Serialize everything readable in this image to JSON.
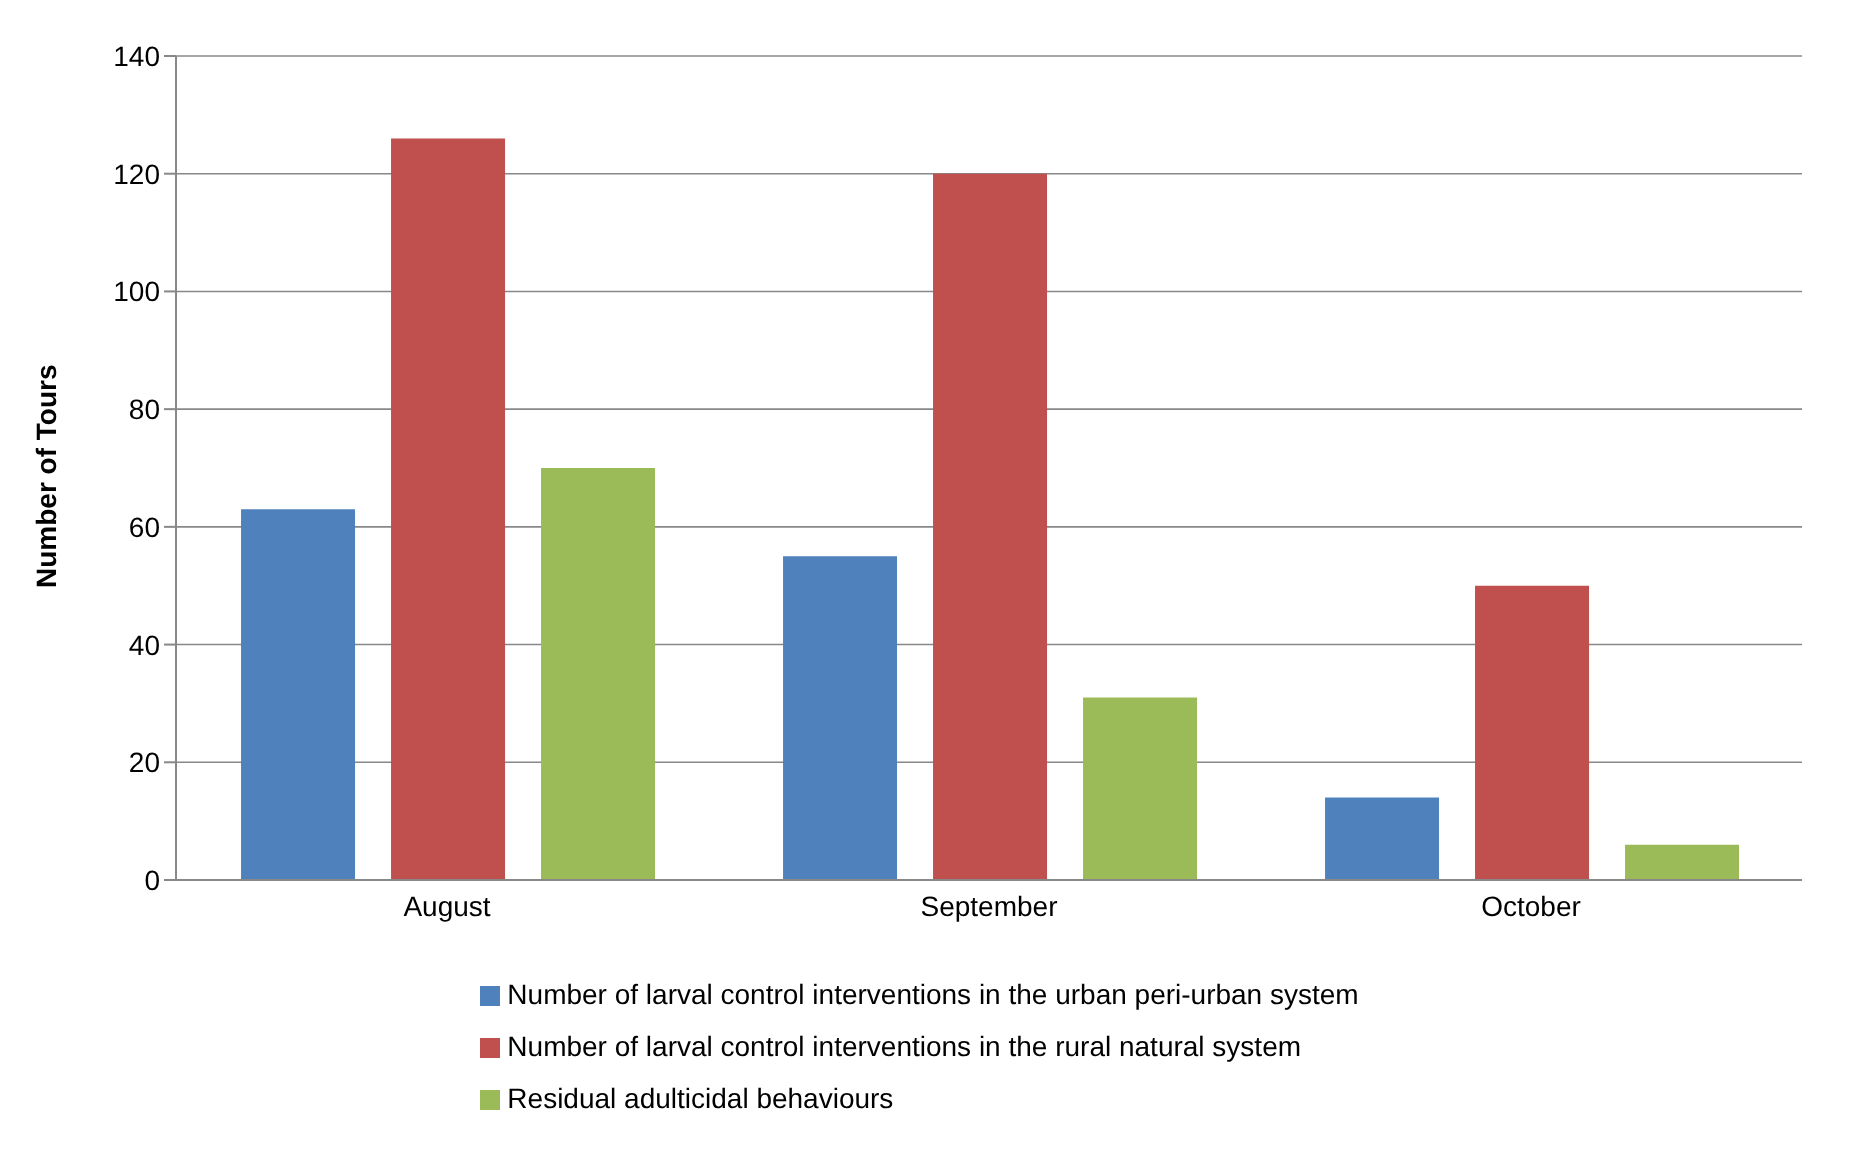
{
  "chart_data": {
    "type": "bar",
    "ylabel": "Number of Tours",
    "categories": [
      "August",
      "September",
      "October"
    ],
    "series": [
      {
        "name": "Number of larval control interventions in the urban peri-urban system",
        "color": "#4f81bd",
        "values": [
          63,
          55,
          14
        ]
      },
      {
        "name": "Number of larval control interventions in the rural natural system",
        "color": "#c0504d",
        "values": [
          126,
          120,
          50
        ]
      },
      {
        "name": "Residual adulticidal behaviours",
        "color": "#9bbb59",
        "values": [
          70,
          31,
          6
        ]
      }
    ],
    "ylim": [
      0,
      140
    ],
    "yticks": [
      0,
      20,
      40,
      60,
      80,
      100,
      120,
      140
    ],
    "grid": "y",
    "legend": "bottom"
  }
}
